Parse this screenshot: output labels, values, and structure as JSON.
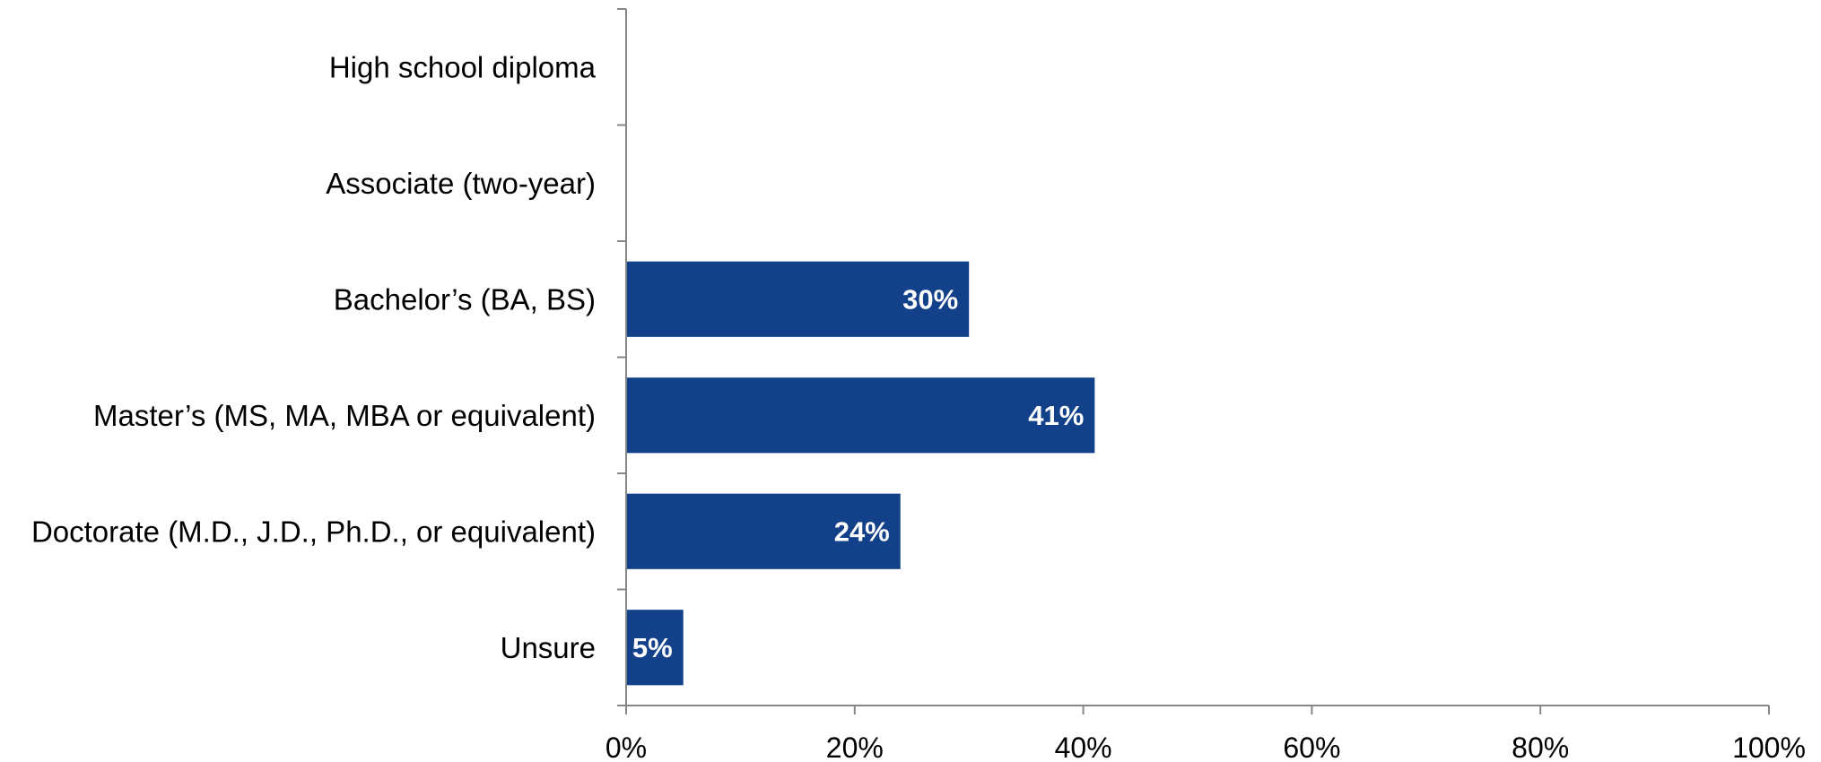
{
  "chart_data": {
    "type": "bar",
    "orientation": "horizontal",
    "categories": [
      "High school diploma",
      "Associate (two-year)",
      "Bachelor’s (BA, BS)",
      "Master’s (MS, MA, MBA or equivalent)",
      "Doctorate (M.D., J.D., Ph.D., or equivalent)",
      "Unsure"
    ],
    "values": [
      null,
      null,
      30,
      41,
      24,
      5
    ],
    "data_labels": [
      "",
      "",
      "30%",
      "41%",
      "24%",
      "5%"
    ],
    "x_ticks": [
      "0%",
      "20%",
      "40%",
      "60%",
      "80%",
      "100%"
    ],
    "xlim": [
      0,
      100
    ],
    "title": "",
    "xlabel": "",
    "ylabel": "",
    "grid": false,
    "legend": "none",
    "bar_color": "#12418A"
  }
}
